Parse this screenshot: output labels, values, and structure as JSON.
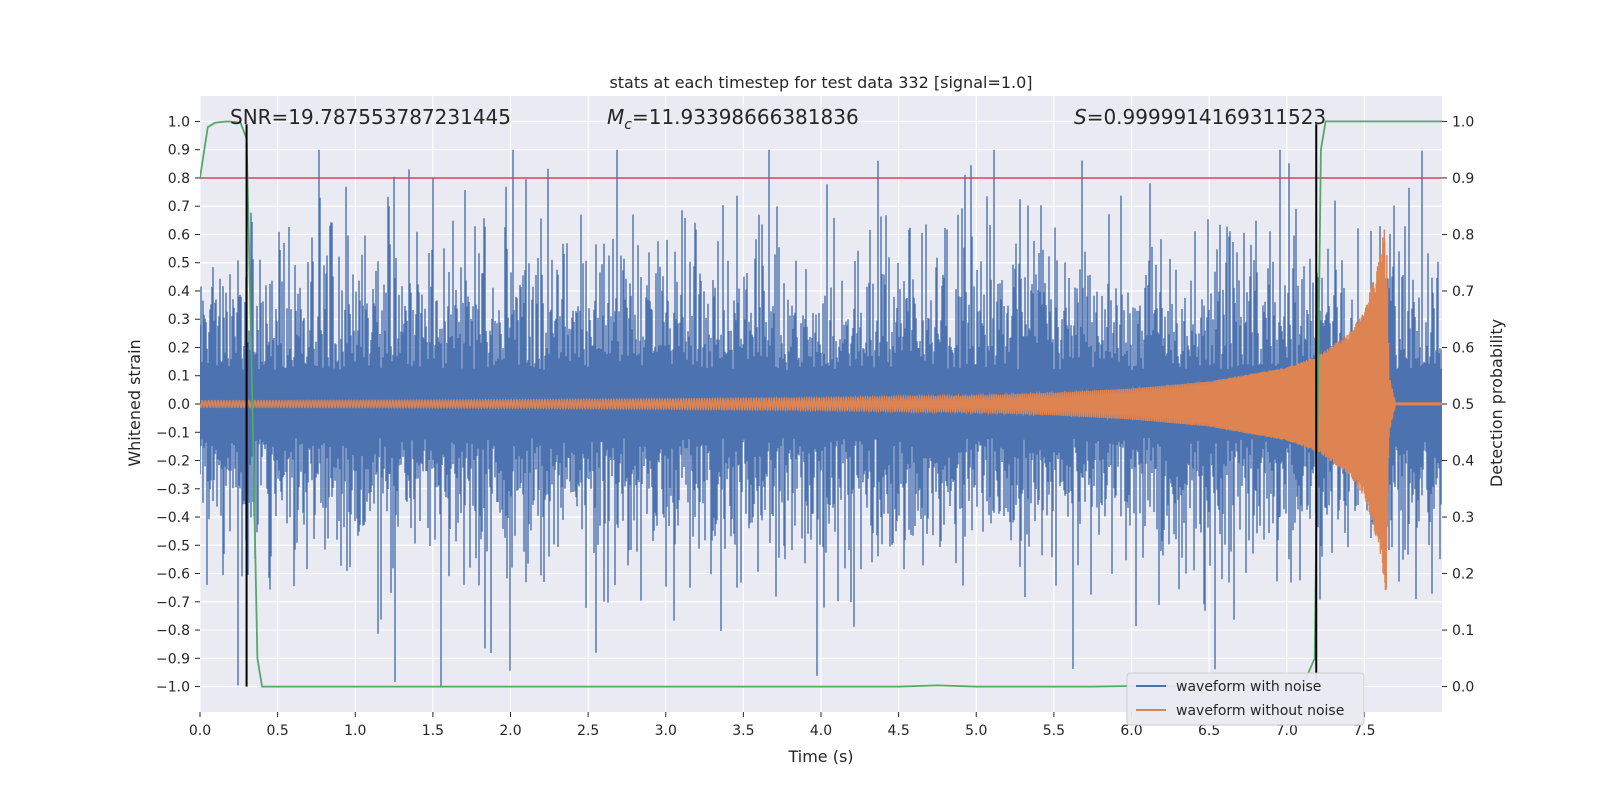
{
  "chart_data": {
    "type": "line",
    "title": "stats at each timestep for test data 332 [signal=1.0]",
    "xlabel": "Time (s)",
    "ylabel": "Whitened strain",
    "y2label": "Detection probability",
    "xlim": [
      0.0,
      8.0
    ],
    "ylim": [
      -1.09,
      1.09
    ],
    "y2lim": [
      -0.045,
      1.045
    ],
    "x_ticks": [
      "0.0",
      "0.5",
      "1.0",
      "1.5",
      "2.0",
      "2.5",
      "3.0",
      "3.5",
      "4.0",
      "4.5",
      "5.0",
      "5.5",
      "6.0",
      "6.5",
      "7.0",
      "7.5"
    ],
    "y_ticks": [
      "1.0",
      "0.9",
      "0.8",
      "0.7",
      "0.6",
      "0.5",
      "0.4",
      "0.3",
      "0.2",
      "0.1",
      "0.0",
      "−0.1",
      "−0.2",
      "−0.3",
      "−0.4",
      "−0.5",
      "−0.6",
      "−0.7",
      "−0.8",
      "−0.9",
      "−1.0"
    ],
    "y2_ticks": [
      "1.0",
      "0.9",
      "0.8",
      "0.7",
      "0.6",
      "0.5",
      "0.4",
      "0.3",
      "0.2",
      "0.1",
      "0.0"
    ],
    "grid": true,
    "legend_position": "lower-right",
    "annotations": {
      "snr": "SNR=19.787553787231445",
      "mc_symbol": "M",
      "mc_sub": "c",
      "mc_value": "=11.93398666381836",
      "s_symbol": "S",
      "s_value": "=0.9999914169311523"
    },
    "series": [
      {
        "name": "waveform with noise",
        "color": "#4c72b0",
        "axis": "left",
        "note": "dense noisy strain signal, approx. amplitude range -1.0 to 0.9"
      },
      {
        "name": "waveform without noise",
        "color": "#dd8452",
        "axis": "left",
        "envelope": {
          "t": [
            0.0,
            1.0,
            2.0,
            3.0,
            4.0,
            5.0,
            5.5,
            6.0,
            6.5,
            7.0,
            7.2,
            7.4,
            7.5,
            7.6,
            7.64,
            7.66,
            7.7,
            8.0
          ],
          "amp": [
            0.012,
            0.013,
            0.015,
            0.018,
            0.022,
            0.03,
            0.04,
            0.055,
            0.08,
            0.13,
            0.17,
            0.25,
            0.33,
            0.52,
            0.68,
            0.1,
            0.005,
            0.005
          ]
        }
      },
      {
        "name": "detection probability",
        "color": "#55a868",
        "axis": "right",
        "t": [
          0.0,
          0.05,
          0.1,
          0.18,
          0.26,
          0.3,
          0.33,
          0.37,
          0.4,
          4.5,
          4.75,
          5.0,
          5.75,
          6.0,
          7.1,
          7.18,
          7.2,
          7.22,
          7.25,
          7.6,
          8.0
        ],
        "p": [
          0.9,
          0.99,
          0.998,
          1.0,
          0.998,
          0.97,
          0.6,
          0.05,
          0.0,
          0.0,
          0.002,
          0.0,
          0.0,
          0.001,
          0.0,
          0.05,
          0.5,
          0.95,
          1.0,
          1.0,
          1.0
        ]
      }
    ],
    "reference_lines": {
      "threshold_y2": 0.9,
      "threshold_color": "#c44e52",
      "vertical_markers_x": [
        0.3,
        7.19
      ],
      "marker_color": "#000000"
    }
  }
}
